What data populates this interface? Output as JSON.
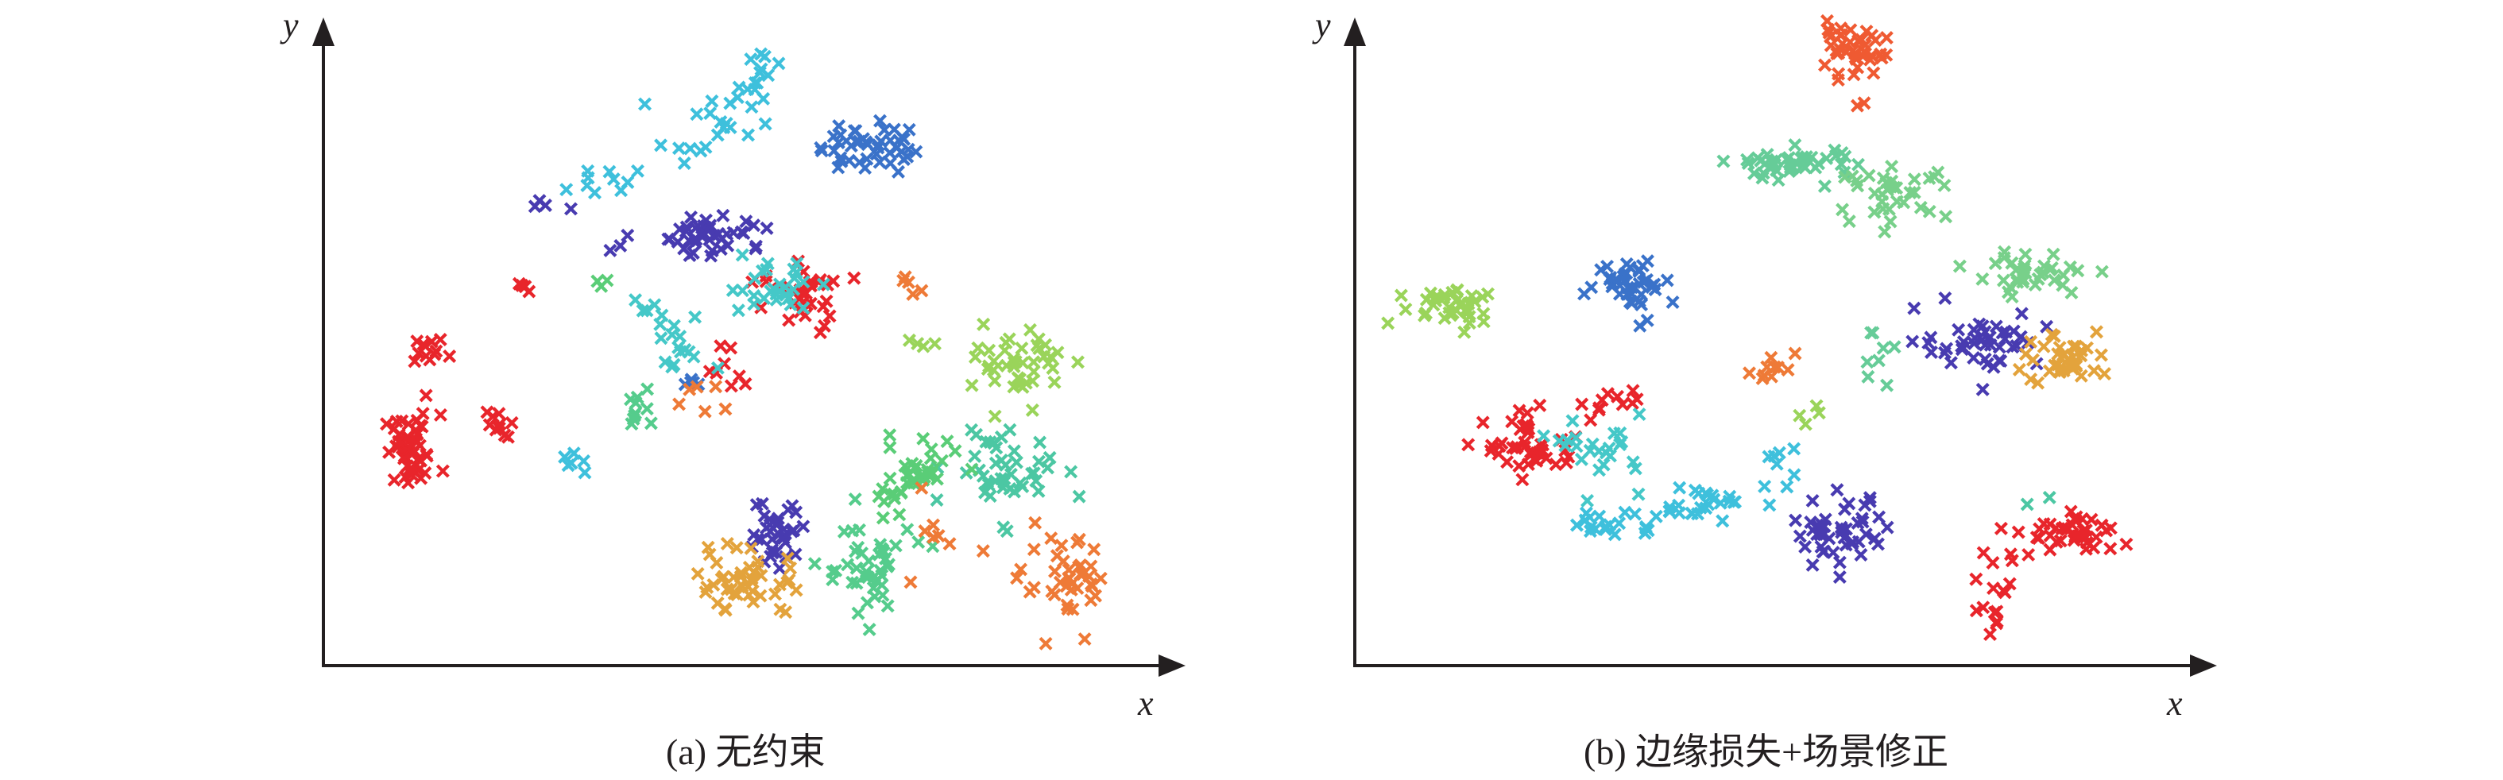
{
  "panels": [
    {
      "caption": "(a) 无约束",
      "xlabel": "x",
      "ylabel": "y"
    },
    {
      "caption": "(b) 边缘损失+场景修正",
      "xlabel": "x",
      "ylabel": "y"
    }
  ],
  "chart_data": [
    {
      "type": "scatter",
      "title": "(a) 无约束",
      "xlabel": "x",
      "ylabel": "y",
      "xlim": [
        0,
        100
      ],
      "ylim": [
        0,
        100
      ],
      "axis_ticks": "none",
      "grid": false,
      "legend": "none",
      "marker": "x",
      "clusters": [
        {
          "color": "#e8252b",
          "center": [
            8,
            34
          ],
          "spread": [
            1.8,
            3.2
          ],
          "n": 50
        },
        {
          "color": "#e8252b",
          "center": [
            10,
            51
          ],
          "spread": [
            1.2,
            1.0
          ],
          "n": 12
        },
        {
          "color": "#e8252b",
          "center": [
            19,
            39
          ],
          "spread": [
            0.8,
            1.2
          ],
          "n": 10
        },
        {
          "color": "#e8252b",
          "center": [
            22,
            62
          ],
          "spread": [
            0.5,
            0.5
          ],
          "n": 4
        },
        {
          "color": "#e8252b",
          "center": [
            58,
            60
          ],
          "spread": [
            2.5,
            3.0
          ],
          "n": 35
        },
        {
          "color": "#e8252b",
          "center": [
            49,
            48
          ],
          "spread": [
            1.5,
            2.0
          ],
          "n": 8
        },
        {
          "color": "#483bb0",
          "center": [
            47,
            71
          ],
          "spread": [
            3.5,
            1.8
          ],
          "n": 45
        },
        {
          "color": "#483bb0",
          "center": [
            26,
            76
          ],
          "spread": [
            2.0,
            0.6
          ],
          "n": 4
        },
        {
          "color": "#483bb0",
          "center": [
            34,
            68
          ],
          "spread": [
            0.5,
            0.5
          ],
          "n": 2
        },
        {
          "color": "#483bb0",
          "center": [
            55,
            21
          ],
          "spread": [
            2.0,
            3.5
          ],
          "n": 35
        },
        {
          "color": "#3a72c9",
          "center": [
            66,
            86
          ],
          "spread": [
            2.8,
            2.3
          ],
          "n": 45
        },
        {
          "color": "#3a72c9",
          "center": [
            44,
            45
          ],
          "spread": [
            1.0,
            1.0
          ],
          "n": 5
        },
        {
          "color": "#3ec0dc",
          "center": [
            52,
            97
          ],
          "spread": [
            1.5,
            3.0
          ],
          "n": 15
        },
        {
          "color": "#3ec0dc",
          "center": [
            46,
            89
          ],
          "spread": [
            3.0,
            2.5
          ],
          "n": 18
        },
        {
          "color": "#3ec0dc",
          "center": [
            32,
            80
          ],
          "spread": [
            2.5,
            1.5
          ],
          "n": 10
        },
        {
          "color": "#3ec0dc",
          "center": [
            29,
            32
          ],
          "spread": [
            1.0,
            1.5
          ],
          "n": 6
        },
        {
          "color": "#45c8c8",
          "center": [
            54,
            62
          ],
          "spread": [
            3.0,
            2.0
          ],
          "n": 30
        },
        {
          "color": "#45c8c8",
          "center": [
            42,
            51
          ],
          "spread": [
            2.0,
            2.5
          ],
          "n": 14
        },
        {
          "color": "#45c8c8",
          "center": [
            39,
            58
          ],
          "spread": [
            1.0,
            2.0
          ],
          "n": 6
        },
        {
          "color": "#4cc7a3",
          "center": [
            84,
            31
          ],
          "spread": [
            3.5,
            4.0
          ],
          "n": 45
        },
        {
          "color": "#55cc8c",
          "center": [
            66,
            14
          ],
          "spread": [
            3.0,
            4.0
          ],
          "n": 45
        },
        {
          "color": "#55cc8c",
          "center": [
            37,
            41
          ],
          "spread": [
            1.2,
            2.0
          ],
          "n": 10
        },
        {
          "color": "#5acd77",
          "center": [
            72,
            30
          ],
          "spread": [
            3.0,
            3.0
          ],
          "n": 40
        },
        {
          "color": "#5acd77",
          "center": [
            31,
            63
          ],
          "spread": [
            0.8,
            0.6
          ],
          "n": 3
        },
        {
          "color": "#9ad45a",
          "center": [
            86,
            49
          ],
          "spread": [
            2.8,
            3.0
          ],
          "n": 45
        },
        {
          "color": "#9ad45a",
          "center": [
            74,
            52
          ],
          "spread": [
            1.5,
            0.6
          ],
          "n": 4
        },
        {
          "color": "#e3a33c",
          "center": [
            51,
            12
          ],
          "spread": [
            3.5,
            3.0
          ],
          "n": 45
        },
        {
          "color": "#ee7a37",
          "center": [
            92,
            11
          ],
          "spread": [
            2.8,
            3.8
          ],
          "n": 40
        },
        {
          "color": "#ee7a37",
          "center": [
            72,
            62
          ],
          "spread": [
            1.0,
            1.5
          ],
          "n": 5
        },
        {
          "color": "#ee7a37",
          "center": [
            75,
            18
          ],
          "spread": [
            3.0,
            3.5
          ],
          "n": 8
        },
        {
          "color": "#ee7a37",
          "center": [
            45,
            43
          ],
          "spread": [
            1.5,
            1.5
          ],
          "n": 6
        }
      ]
    },
    {
      "type": "scatter",
      "title": "(b) 边缘损失+场景修正",
      "xlabel": "x",
      "ylabel": "y",
      "xlim": [
        0,
        100
      ],
      "ylim": [
        0,
        100
      ],
      "axis_ticks": "none",
      "grid": false,
      "legend": "none",
      "marker": "x",
      "clusters": [
        {
          "color": "#ef5a32",
          "center": [
            60,
            102
          ],
          "spread": [
            2.5,
            2.0
          ],
          "n": 40
        },
        {
          "color": "#ef5a32",
          "center": [
            62,
            93
          ],
          "spread": [
            0.5,
            0.5
          ],
          "n": 2
        },
        {
          "color": "#66cc98",
          "center": [
            53,
            83
          ],
          "spread": [
            4.0,
            1.5
          ],
          "n": 45
        },
        {
          "color": "#78d08a",
          "center": [
            66,
            78
          ],
          "spread": [
            3.5,
            2.0
          ],
          "n": 35
        },
        {
          "color": "#78d08a",
          "center": [
            84,
            64
          ],
          "spread": [
            4.0,
            2.0
          ],
          "n": 35
        },
        {
          "color": "#9ad45a",
          "center": [
            10,
            59
          ],
          "spread": [
            3.5,
            1.8
          ],
          "n": 40
        },
        {
          "color": "#3a72c9",
          "center": [
            33,
            63
          ],
          "spread": [
            2.5,
            2.0
          ],
          "n": 40
        },
        {
          "color": "#3a72c9",
          "center": [
            34,
            56
          ],
          "spread": [
            0.5,
            0.5
          ],
          "n": 2
        },
        {
          "color": "#483bb0",
          "center": [
            77,
            53
          ],
          "spread": [
            4.0,
            2.5
          ],
          "n": 45
        },
        {
          "color": "#e3a33c",
          "center": [
            88,
            50
          ],
          "spread": [
            2.8,
            2.5
          ],
          "n": 40
        },
        {
          "color": "#e8252b",
          "center": [
            20,
            35
          ],
          "spread": [
            3.0,
            2.5
          ],
          "n": 45
        },
        {
          "color": "#e8252b",
          "center": [
            31,
            42
          ],
          "spread": [
            3.0,
            1.5
          ],
          "n": 10
        },
        {
          "color": "#e8252b",
          "center": [
            89,
            20
          ],
          "spread": [
            3.0,
            1.8
          ],
          "n": 40
        },
        {
          "color": "#e8252b",
          "center": [
            80,
            13
          ],
          "spread": [
            2.0,
            3.0
          ],
          "n": 12
        },
        {
          "color": "#e8252b",
          "center": [
            78,
            5
          ],
          "spread": [
            1.5,
            1.0
          ],
          "n": 6
        },
        {
          "color": "#45c8c8",
          "center": [
            29,
            34
          ],
          "spread": [
            2.5,
            3.0
          ],
          "n": 25
        },
        {
          "color": "#3ec0dc",
          "center": [
            30,
            22
          ],
          "spread": [
            3.5,
            1.2
          ],
          "n": 20
        },
        {
          "color": "#3ec0dc",
          "center": [
            42,
            25
          ],
          "spread": [
            3.0,
            1.5
          ],
          "n": 25
        },
        {
          "color": "#3ec0dc",
          "center": [
            51,
            33
          ],
          "spread": [
            1.5,
            2.5
          ],
          "n": 8
        },
        {
          "color": "#483bb0",
          "center": [
            59,
            20
          ],
          "spread": [
            3.0,
            3.0
          ],
          "n": 45
        },
        {
          "color": "#ee7a37",
          "center": [
            51,
            48
          ],
          "spread": [
            1.5,
            1.5
          ],
          "n": 10
        },
        {
          "color": "#66cc98",
          "center": [
            64,
            49
          ],
          "spread": [
            2.0,
            2.5
          ],
          "n": 8
        },
        {
          "color": "#9ad45a",
          "center": [
            55,
            39
          ],
          "spread": [
            1.0,
            2.0
          ],
          "n": 4
        },
        {
          "color": "#4cc7a3",
          "center": [
            84,
            26
          ],
          "spread": [
            0.5,
            0.5
          ],
          "n": 2
        }
      ]
    }
  ]
}
